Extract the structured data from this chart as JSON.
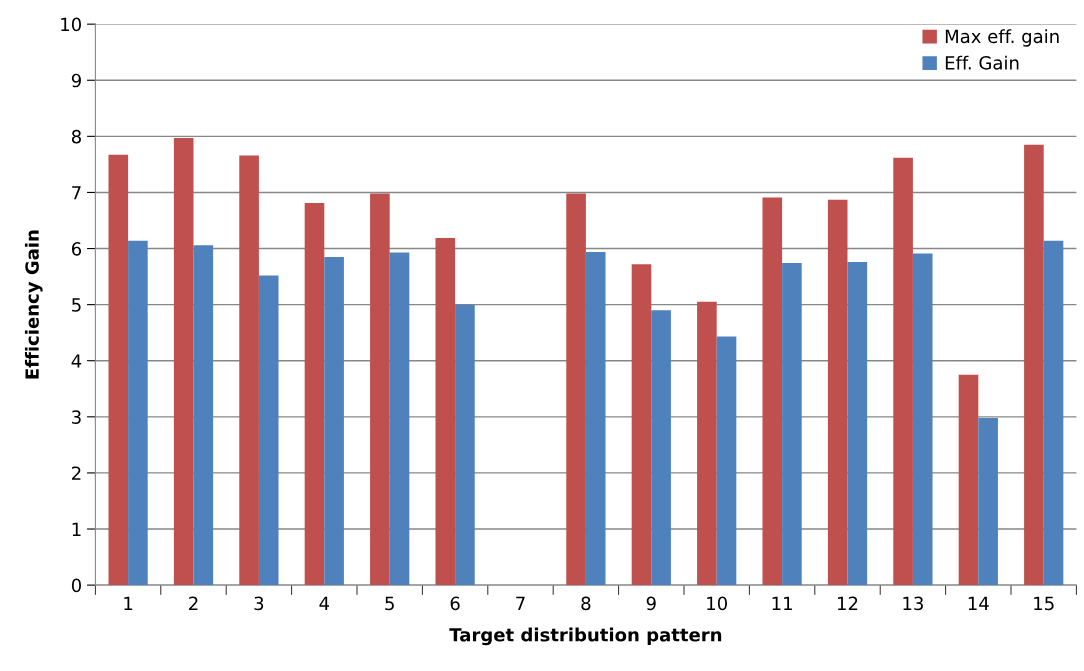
{
  "chart_data": {
    "type": "bar",
    "xlabel": "Target distribution pattern",
    "ylabel": "Efficiency Gain",
    "categories": [
      "1",
      "2",
      "3",
      "4",
      "5",
      "6",
      "7",
      "8",
      "9",
      "10",
      "11",
      "12",
      "13",
      "14",
      "15"
    ],
    "series": [
      {
        "name": "Max eff. gain",
        "color": "#c0504d",
        "values": [
          7.67,
          7.97,
          7.66,
          6.81,
          6.98,
          6.19,
          null,
          6.98,
          5.72,
          5.05,
          6.91,
          6.87,
          7.62,
          3.75,
          7.85
        ]
      },
      {
        "name": "Eff. Gain",
        "color": "#4f81bd",
        "values": [
          6.14,
          6.06,
          5.52,
          5.85,
          5.93,
          5.0,
          null,
          5.94,
          4.9,
          4.43,
          5.74,
          5.76,
          5.91,
          2.98,
          6.14
        ]
      }
    ],
    "ylim": [
      0,
      10
    ],
    "yticks": [
      0,
      1,
      2,
      3,
      4,
      5,
      6,
      7,
      8,
      9,
      10
    ],
    "grid": "y",
    "legend": "top right"
  }
}
